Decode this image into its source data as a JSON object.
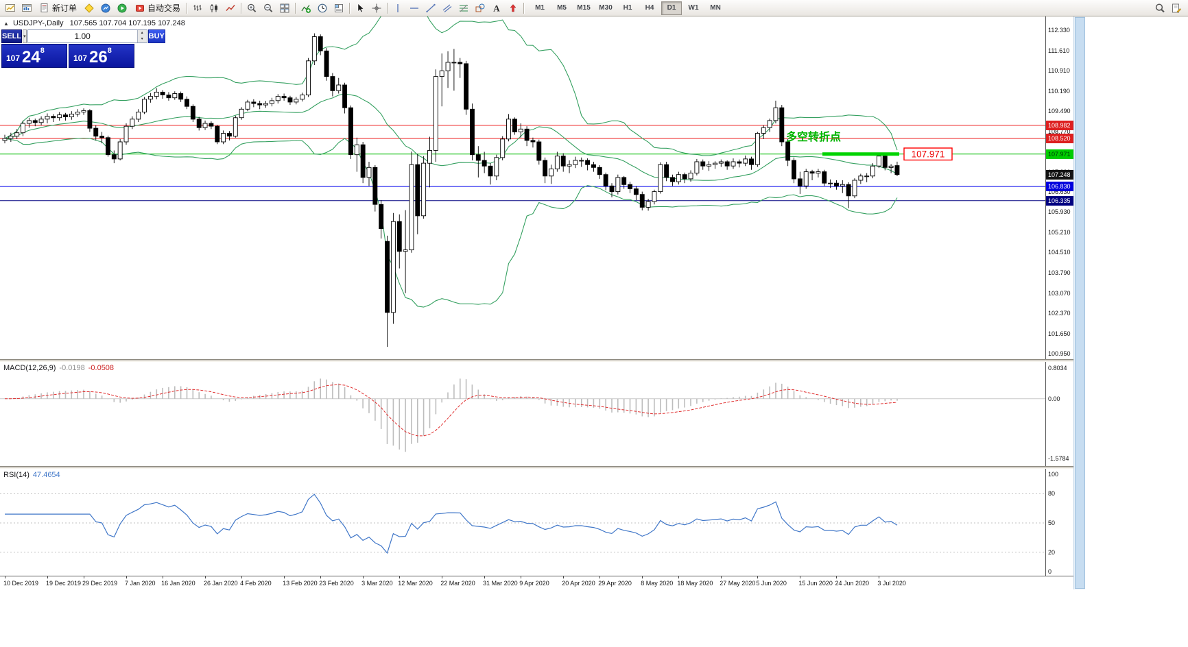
{
  "toolbar": {
    "left_items": [
      {
        "name": "profiles-button",
        "kind": "icon",
        "icon": "charts-icon"
      },
      {
        "name": "new-chart-button",
        "kind": "icon",
        "icon": "chart-window-icon"
      },
      {
        "name": "new-order-button",
        "kind": "button",
        "icon": "new-order-icon",
        "label": "新订单"
      },
      {
        "name": "metaeditor-button",
        "kind": "icon",
        "icon": "metaeditor-icon"
      },
      {
        "name": "market-watch-button",
        "kind": "icon",
        "icon": "terminal-icon"
      },
      {
        "name": "strategy-tester-button",
        "kind": "icon",
        "icon": "strategy-icon"
      },
      {
        "name": "autotrading-button",
        "kind": "button",
        "icon": "autotrading-icon",
        "label": "自动交易"
      },
      {
        "kind": "sep"
      },
      {
        "name": "bar-chart-button",
        "kind": "icon",
        "icon": "bar-chart-icon"
      },
      {
        "name": "candlestick-chart-button",
        "kind": "icon",
        "icon": "candles-icon"
      },
      {
        "name": "line-chart-button",
        "kind": "icon",
        "icon": "line-chart-icon"
      },
      {
        "kind": "sep"
      },
      {
        "name": "zoom-in-button",
        "kind": "icon",
        "icon": "zoom-in-icon"
      },
      {
        "name": "zoom-out-button",
        "kind": "icon",
        "icon": "zoom-out-icon"
      },
      {
        "name": "tile-windows-button",
        "kind": "icon",
        "icon": "tile-windows-icon"
      },
      {
        "kind": "sep"
      },
      {
        "name": "indicators-button",
        "kind": "icon",
        "icon": "indicators-icon"
      },
      {
        "name": "periods-button",
        "kind": "icon",
        "icon": "periods-icon"
      },
      {
        "name": "templates-button",
        "kind": "icon",
        "icon": "templates-icon"
      },
      {
        "kind": "sep"
      },
      {
        "name": "cursor-button",
        "kind": "icon",
        "icon": "cursor-icon"
      },
      {
        "name": "crosshair-button",
        "kind": "icon",
        "icon": "crosshair-icon"
      },
      {
        "kind": "sep"
      },
      {
        "name": "vertical-line-button",
        "kind": "icon",
        "icon": "vline-icon"
      },
      {
        "name": "horizontal-line-button",
        "kind": "icon",
        "icon": "hline-icon"
      },
      {
        "name": "trendline-button",
        "kind": "icon",
        "icon": "trendline-icon"
      },
      {
        "name": "channel-button",
        "kind": "icon",
        "icon": "channel-icon"
      },
      {
        "name": "fibonacci-button",
        "kind": "icon",
        "icon": "fibonacci-icon"
      },
      {
        "name": "shapes-button",
        "kind": "icon",
        "icon": "shapes-icon"
      },
      {
        "name": "text-button",
        "kind": "icon",
        "icon": "text-icon"
      },
      {
        "name": "arrows-button",
        "kind": "icon",
        "icon": "arrows-icon"
      },
      {
        "kind": "sep"
      }
    ],
    "timeframes": [
      "M1",
      "M5",
      "M15",
      "M30",
      "H1",
      "H4",
      "D1",
      "W1",
      "MN"
    ],
    "active_timeframe": "D1",
    "right_items": [
      {
        "name": "search-button",
        "kind": "icon",
        "icon": "search-icon"
      },
      {
        "name": "journal-button",
        "kind": "icon",
        "icon": "journal-icon"
      }
    ]
  },
  "icons": {
    "caret_up": "▴",
    "caret_down": "▾",
    "title_marker": "▲"
  },
  "chart": {
    "title": "USDJPY-,Daily",
    "ohlc": "107.565 107.704 107.195 107.248",
    "annotation": {
      "text": "多空转折点",
      "color": "#00b400"
    },
    "price_label_box": "107.971",
    "segment": {
      "price": 107.971,
      "color": "#00d400"
    },
    "tags": [
      {
        "text": "108.982",
        "price": 108.982,
        "bg": "#dd1f1f",
        "fg": "#ffffff"
      },
      {
        "text": "108.520",
        "price": 108.52,
        "bg": "#dd1f1f",
        "fg": "#ffffff"
      },
      {
        "text": "107.971",
        "price": 107.971,
        "bg": "#00cc00",
        "fg": "#00330a"
      },
      {
        "text": "107.248",
        "price": 107.248,
        "bg": "#141414",
        "fg": "#ffffff"
      },
      {
        "text": "106.830",
        "price": 106.83,
        "bg": "#0000dd",
        "fg": "#ffffff"
      },
      {
        "text": "106.335",
        "price": 106.335,
        "bg": "#000080",
        "fg": "#ffffff"
      }
    ]
  },
  "one_click": {
    "sell_label": "SELL",
    "buy_label": "BUY",
    "volume": "1.00",
    "sell_price": {
      "big_figure": "107",
      "pips": "24",
      "fraction": "8"
    },
    "buy_price": {
      "big_figure": "107",
      "pips": "26",
      "fraction": "8"
    }
  },
  "macd": {
    "name": "MACD(12,26,9)",
    "value_main": "-0.0198",
    "value_signal": "-0.0508",
    "scale_top": "0.8034",
    "scale_zero": "0.00",
    "scale_bottom": "-1.5784"
  },
  "rsi": {
    "name": "RSI(14)",
    "value": "47.4654",
    "scale": [
      "100",
      "80",
      "50",
      "20",
      "0"
    ]
  },
  "chart_data": {
    "type": "candlestick",
    "symbol": "USDJPY",
    "timeframe": "Daily",
    "last_ohlc": {
      "open": 107.565,
      "high": 107.704,
      "low": 107.195,
      "close": 107.248
    },
    "y_ticks": [
      "112.330",
      "111.610",
      "110.910",
      "110.190",
      "109.490",
      "108.770",
      "108.050",
      "107.330",
      "106.630",
      "105.930",
      "105.210",
      "104.510",
      "103.790",
      "103.070",
      "102.370",
      "101.650",
      "100.950"
    ],
    "x_labels": [
      "10 Dec 2019",
      "19 Dec 2019",
      "29 Dec 2019",
      "7 Jan 2020",
      "16 Jan 2020",
      "26 Jan 2020",
      "4 Feb 2020",
      "13 Feb 2020",
      "23 Feb 2020",
      "3 Mar 2020",
      "12 Mar 2020",
      "22 Mar 2020",
      "31 Mar 2020",
      "9 Apr 2020",
      "20 Apr 2020",
      "29 Apr 2020",
      "8 May 2020",
      "18 May 2020",
      "27 May 2020",
      "5 Jun 2020",
      "15 Jun 2020",
      "24 Jun 2020",
      "3 Jul 2020"
    ],
    "levels": [
      {
        "price": 108.982,
        "color": "#ee2222"
      },
      {
        "price": 108.52,
        "color": "#ee2222"
      },
      {
        "price": 107.971,
        "color": "#00bb00"
      },
      {
        "price": 106.83,
        "color": "#0000ee"
      },
      {
        "price": 106.335,
        "color": "#000080"
      }
    ],
    "indicators": {
      "bollinger": {
        "period": 20,
        "deviation": 2,
        "color": "#35a060"
      },
      "macd": {
        "fast": 12,
        "slow": 26,
        "signal": 9,
        "main_value": -0.0198,
        "signal_value": -0.0508,
        "scale": {
          "top": 0.8034,
          "zero": 0,
          "bottom": -1.5784
        }
      },
      "rsi": {
        "period": 14,
        "value": 47.4654,
        "levels": [
          80,
          50,
          20
        ]
      }
    },
    "candles": [
      [
        108.45,
        108.65,
        108.35,
        108.52
      ],
      [
        108.52,
        108.72,
        108.4,
        108.6
      ],
      [
        108.6,
        108.85,
        108.5,
        108.72
      ],
      [
        108.72,
        109.15,
        108.6,
        109.05
      ],
      [
        109.05,
        109.25,
        108.9,
        109.15
      ],
      [
        109.15,
        109.22,
        108.95,
        109.08
      ],
      [
        109.08,
        109.3,
        108.98,
        109.2
      ],
      [
        109.2,
        109.4,
        109.05,
        109.3
      ],
      [
        109.3,
        109.38,
        109.1,
        109.25
      ],
      [
        109.25,
        109.45,
        109.15,
        109.35
      ],
      [
        109.35,
        109.42,
        109.15,
        109.28
      ],
      [
        109.28,
        109.48,
        109.18,
        109.38
      ],
      [
        109.38,
        109.55,
        109.28,
        109.45
      ],
      [
        109.45,
        109.58,
        109.35,
        109.5
      ],
      [
        109.5,
        109.55,
        108.75,
        108.88
      ],
      [
        108.88,
        108.98,
        108.45,
        108.6
      ],
      [
        108.6,
        108.75,
        108.35,
        108.55
      ],
      [
        108.55,
        108.62,
        107.88,
        107.95
      ],
      [
        107.95,
        108.1,
        107.65,
        107.8
      ],
      [
        107.8,
        108.5,
        107.75,
        108.4
      ],
      [
        108.4,
        109.05,
        108.3,
        108.95
      ],
      [
        108.95,
        109.3,
        108.85,
        109.2
      ],
      [
        109.2,
        109.55,
        109.1,
        109.45
      ],
      [
        109.45,
        109.98,
        109.38,
        109.9
      ],
      [
        109.9,
        110.12,
        109.78,
        110.0
      ],
      [
        110.0,
        110.29,
        109.9,
        110.15
      ],
      [
        110.15,
        110.22,
        109.92,
        110.05
      ],
      [
        110.05,
        110.15,
        109.85,
        109.95
      ],
      [
        109.95,
        110.18,
        109.88,
        110.1
      ],
      [
        110.1,
        110.17,
        109.8,
        109.9
      ],
      [
        109.9,
        110.0,
        109.55,
        109.65
      ],
      [
        109.65,
        109.72,
        109.1,
        109.2
      ],
      [
        109.2,
        109.28,
        108.8,
        108.9
      ],
      [
        108.9,
        109.15,
        108.82,
        109.05
      ],
      [
        109.05,
        109.12,
        108.85,
        108.95
      ],
      [
        108.95,
        109.0,
        108.32,
        108.4
      ],
      [
        108.4,
        108.8,
        108.32,
        108.7
      ],
      [
        108.7,
        108.78,
        108.45,
        108.6
      ],
      [
        108.6,
        109.32,
        108.55,
        109.25
      ],
      [
        109.25,
        109.62,
        109.18,
        109.55
      ],
      [
        109.55,
        109.88,
        109.48,
        109.8
      ],
      [
        109.8,
        109.9,
        109.62,
        109.75
      ],
      [
        109.75,
        109.85,
        109.55,
        109.7
      ],
      [
        109.7,
        109.84,
        109.6,
        109.75
      ],
      [
        109.75,
        109.95,
        109.65,
        109.85
      ],
      [
        109.85,
        110.08,
        109.75,
        110.0
      ],
      [
        110.0,
        110.1,
        109.85,
        109.95
      ],
      [
        109.95,
        110.02,
        109.7,
        109.8
      ],
      [
        109.8,
        109.98,
        109.72,
        109.9
      ],
      [
        109.9,
        110.13,
        109.82,
        110.05
      ],
      [
        110.05,
        111.35,
        109.98,
        111.25
      ],
      [
        111.25,
        112.22,
        111.1,
        112.1
      ],
      [
        112.1,
        112.18,
        111.45,
        111.6
      ],
      [
        111.6,
        111.7,
        110.55,
        110.7
      ],
      [
        110.7,
        110.82,
        110.0,
        110.2
      ],
      [
        110.2,
        110.65,
        110.1,
        110.4
      ],
      [
        110.4,
        110.48,
        109.4,
        109.6
      ],
      [
        109.6,
        109.68,
        107.8,
        107.95
      ],
      [
        107.95,
        108.55,
        107.35,
        108.3
      ],
      [
        108.3,
        108.4,
        106.95,
        107.15
      ],
      [
        107.15,
        107.7,
        106.85,
        107.5
      ],
      [
        107.5,
        107.58,
        105.95,
        106.2
      ],
      [
        106.2,
        106.35,
        105.0,
        105.35
      ],
      [
        104.9,
        105.1,
        101.19,
        102.4
      ],
      [
        102.4,
        105.9,
        102.0,
        105.6
      ],
      [
        105.6,
        105.85,
        103.95,
        104.55
      ],
      [
        104.55,
        106.0,
        103.08,
        104.6
      ],
      [
        104.6,
        108.06,
        104.5,
        107.6
      ],
      [
        107.6,
        107.98,
        105.15,
        105.8
      ],
      [
        105.8,
        107.9,
        105.7,
        107.65
      ],
      [
        107.65,
        108.58,
        106.8,
        108.1
      ],
      [
        108.1,
        110.95,
        107.7,
        110.7
      ],
      [
        110.7,
        111.51,
        109.65,
        110.9
      ],
      [
        110.9,
        111.59,
        110.3,
        111.2
      ],
      [
        111.2,
        111.67,
        110.2,
        111.2
      ],
      [
        111.2,
        111.35,
        110.65,
        111.15
      ],
      [
        111.15,
        111.25,
        109.35,
        109.55
      ],
      [
        109.55,
        109.75,
        107.75,
        107.95
      ],
      [
        107.95,
        108.25,
        107.15,
        107.75
      ],
      [
        107.75,
        108.05,
        107.3,
        107.55
      ],
      [
        107.55,
        107.65,
        106.9,
        107.2
      ],
      [
        107.2,
        107.95,
        107.05,
        107.85
      ],
      [
        107.85,
        108.6,
        107.75,
        108.5
      ],
      [
        108.5,
        109.38,
        108.42,
        109.2
      ],
      [
        109.2,
        109.26,
        108.65,
        108.75
      ],
      [
        108.75,
        109.05,
        108.55,
        108.85
      ],
      [
        108.85,
        108.95,
        108.25,
        108.45
      ],
      [
        108.45,
        108.55,
        108.2,
        108.4
      ],
      [
        108.4,
        108.48,
        107.6,
        107.75
      ],
      [
        107.75,
        107.85,
        106.95,
        107.2
      ],
      [
        107.2,
        107.6,
        106.92,
        107.45
      ],
      [
        107.45,
        108.05,
        107.35,
        107.9
      ],
      [
        107.9,
        108.0,
        107.35,
        107.55
      ],
      [
        107.55,
        107.75,
        107.3,
        107.6
      ],
      [
        107.6,
        107.88,
        107.48,
        107.75
      ],
      [
        107.75,
        107.85,
        107.52,
        107.75
      ],
      [
        107.75,
        107.82,
        107.4,
        107.6
      ],
      [
        107.6,
        107.7,
        107.35,
        107.5
      ],
      [
        107.5,
        107.58,
        107.1,
        107.25
      ],
      [
        107.25,
        107.32,
        106.7,
        106.85
      ],
      [
        106.85,
        106.95,
        106.45,
        106.65
      ],
      [
        106.65,
        107.25,
        106.55,
        107.15
      ],
      [
        107.15,
        107.2,
        106.75,
        106.9
      ],
      [
        106.9,
        107.0,
        106.6,
        106.75
      ],
      [
        106.75,
        106.85,
        106.35,
        106.55
      ],
      [
        106.55,
        106.65,
        105.99,
        106.1
      ],
      [
        106.1,
        106.4,
        105.98,
        106.3
      ],
      [
        106.3,
        106.72,
        106.2,
        106.65
      ],
      [
        106.65,
        107.68,
        106.58,
        107.6
      ],
      [
        107.6,
        107.7,
        107.02,
        107.15
      ],
      [
        107.15,
        107.25,
        106.85,
        107.0
      ],
      [
        107.0,
        107.35,
        106.9,
        107.25
      ],
      [
        107.25,
        107.32,
        106.95,
        107.1
      ],
      [
        107.1,
        107.4,
        107.0,
        107.3
      ],
      [
        107.3,
        107.8,
        107.22,
        107.7
      ],
      [
        107.7,
        107.78,
        107.42,
        107.55
      ],
      [
        107.55,
        107.72,
        107.38,
        107.6
      ],
      [
        107.6,
        107.72,
        107.45,
        107.65
      ],
      [
        107.65,
        107.78,
        107.52,
        107.7
      ],
      [
        107.7,
        107.75,
        107.42,
        107.55
      ],
      [
        107.55,
        107.82,
        107.45,
        107.7
      ],
      [
        107.7,
        107.78,
        107.5,
        107.65
      ],
      [
        107.65,
        107.92,
        107.55,
        107.8
      ],
      [
        107.8,
        107.88,
        107.42,
        107.6
      ],
      [
        107.6,
        108.75,
        107.52,
        108.7
      ],
      [
        108.7,
        108.98,
        108.5,
        108.9
      ],
      [
        108.9,
        109.22,
        108.75,
        109.15
      ],
      [
        109.15,
        109.85,
        109.05,
        109.6
      ],
      [
        109.6,
        109.7,
        108.25,
        108.4
      ],
      [
        108.4,
        108.5,
        107.55,
        107.75
      ],
      [
        107.75,
        107.85,
        106.95,
        107.1
      ],
      [
        107.1,
        107.35,
        106.57,
        106.85
      ],
      [
        106.85,
        107.45,
        106.75,
        107.35
      ],
      [
        107.35,
        107.42,
        107.05,
        107.3
      ],
      [
        107.3,
        107.45,
        107.15,
        107.35
      ],
      [
        107.35,
        107.42,
        106.85,
        106.95
      ],
      [
        106.95,
        107.08,
        106.78,
        106.95
      ],
      [
        106.95,
        107.05,
        106.72,
        106.85
      ],
      [
        106.85,
        107.05,
        106.6,
        106.9
      ],
      [
        106.9,
        106.98,
        106.07,
        106.5
      ],
      [
        106.5,
        107.12,
        106.42,
        107.05
      ],
      [
        107.05,
        107.28,
        106.92,
        107.2
      ],
      [
        107.2,
        107.3,
        106.98,
        107.2
      ],
      [
        107.2,
        107.65,
        107.12,
        107.55
      ],
      [
        107.55,
        107.97,
        107.48,
        107.9
      ],
      [
        107.9,
        107.97,
        107.4,
        107.5
      ],
      [
        107.5,
        107.62,
        107.3,
        107.55
      ],
      [
        107.565,
        107.704,
        107.195,
        107.248
      ]
    ]
  }
}
